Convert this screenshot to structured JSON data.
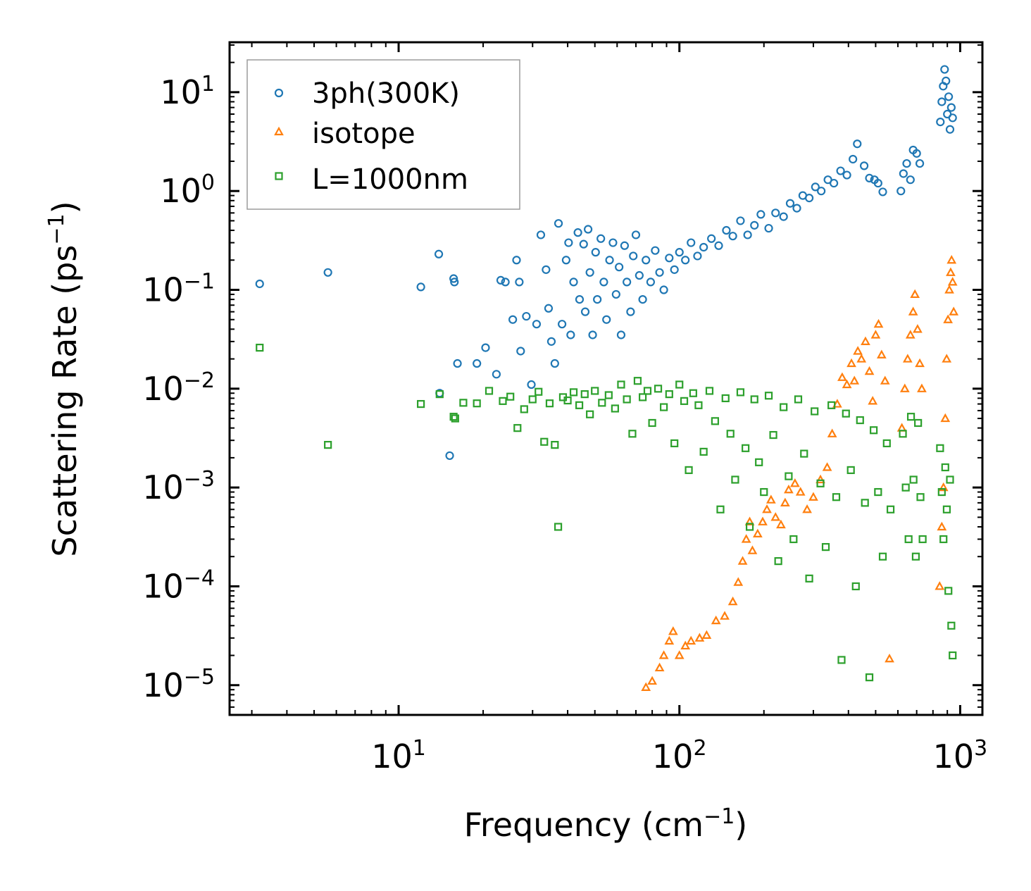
{
  "chart_data": {
    "type": "scatter",
    "title": "",
    "xlabel": "Frequency (cm",
    "xlabel_sup": "−1",
    "xlabel_tail": ")",
    "ylabel": "Scattering Rate (ps",
    "ylabel_sup": "−1",
    "ylabel_tail": ")",
    "xscale": "log",
    "yscale": "log",
    "xlim": [
      2.5,
      1200
    ],
    "ylim": [
      5e-06,
      32
    ],
    "x_major_ticks": [
      {
        "value": 10,
        "base": "10",
        "exp": "1"
      },
      {
        "value": 100,
        "base": "10",
        "exp": "2"
      },
      {
        "value": 1000,
        "base": "10",
        "exp": "3"
      }
    ],
    "y_major_ticks": [
      {
        "value": 10,
        "base": "10",
        "exp": "1"
      },
      {
        "value": 1,
        "base": "10",
        "exp": "0"
      },
      {
        "value": 0.1,
        "base": "10",
        "exp": "−1"
      },
      {
        "value": 0.01,
        "base": "10",
        "exp": "−2"
      },
      {
        "value": 0.001,
        "base": "10",
        "exp": "−3"
      },
      {
        "value": 0.0001,
        "base": "10",
        "exp": "−4"
      },
      {
        "value": 1e-05,
        "base": "10",
        "exp": "−5"
      }
    ],
    "legend_location": "upper-left",
    "series": [
      {
        "name": "3ph(300K)",
        "marker": "circle",
        "color": "#1f77b4",
        "points": [
          [
            3.2,
            0.115
          ],
          [
            5.6,
            0.15
          ],
          [
            12,
            0.107
          ],
          [
            13.9,
            0.23
          ],
          [
            15.7,
            0.13
          ],
          [
            15.8,
            0.12
          ],
          [
            14,
            0.009
          ],
          [
            15.2,
            0.0021
          ],
          [
            16.2,
            0.018
          ],
          [
            19,
            0.018
          ],
          [
            20.4,
            0.026
          ],
          [
            23.1,
            0.125
          ],
          [
            22.3,
            0.014
          ],
          [
            24,
            0.12
          ],
          [
            25.5,
            0.05
          ],
          [
            26.3,
            0.2
          ],
          [
            26.9,
            0.12
          ],
          [
            27.2,
            0.024
          ],
          [
            28.5,
            0.054
          ],
          [
            29.7,
            0.011
          ],
          [
            31,
            0.045
          ],
          [
            32.1,
            0.36
          ],
          [
            33.5,
            0.16
          ],
          [
            34.2,
            0.065
          ],
          [
            35,
            0.03
          ],
          [
            36,
            0.018
          ],
          [
            37.1,
            0.47
          ],
          [
            38.2,
            0.045
          ],
          [
            39.5,
            0.2
          ],
          [
            40.3,
            0.3
          ],
          [
            41,
            0.035
          ],
          [
            42,
            0.12
          ],
          [
            43.5,
            0.38
          ],
          [
            44.1,
            0.08
          ],
          [
            45.6,
            0.29
          ],
          [
            46.2,
            0.06
          ],
          [
            47.3,
            0.41
          ],
          [
            48,
            0.15
          ],
          [
            49.1,
            0.035
          ],
          [
            50.3,
            0.24
          ],
          [
            51,
            0.08
          ],
          [
            52.5,
            0.33
          ],
          [
            53.8,
            0.12
          ],
          [
            55,
            0.05
          ],
          [
            56.4,
            0.2
          ],
          [
            58,
            0.3
          ],
          [
            59.5,
            0.09
          ],
          [
            61,
            0.17
          ],
          [
            62,
            0.035
          ],
          [
            63.8,
            0.28
          ],
          [
            65,
            0.12
          ],
          [
            67,
            0.06
          ],
          [
            68.5,
            0.22
          ],
          [
            70,
            0.36
          ],
          [
            72,
            0.14
          ],
          [
            74,
            0.08
          ],
          [
            76,
            0.2
          ],
          [
            79,
            0.12
          ],
          [
            82,
            0.25
          ],
          [
            85,
            0.15
          ],
          [
            88,
            0.1
          ],
          [
            92,
            0.21
          ],
          [
            96,
            0.16
          ],
          [
            100,
            0.24
          ],
          [
            105,
            0.2
          ],
          [
            110,
            0.3
          ],
          [
            116,
            0.22
          ],
          [
            122,
            0.27
          ],
          [
            130,
            0.33
          ],
          [
            138,
            0.28
          ],
          [
            147,
            0.4
          ],
          [
            155,
            0.35
          ],
          [
            165,
            0.5
          ],
          [
            175,
            0.36
          ],
          [
            185,
            0.45
          ],
          [
            195,
            0.58
          ],
          [
            208,
            0.42
          ],
          [
            220,
            0.6
          ],
          [
            235,
            0.55
          ],
          [
            248,
            0.75
          ],
          [
            262,
            0.67
          ],
          [
            275,
            0.9
          ],
          [
            290,
            0.85
          ],
          [
            305,
            1.1
          ],
          [
            320,
            1.0
          ],
          [
            338,
            1.3
          ],
          [
            355,
            1.2
          ],
          [
            375,
            1.6
          ],
          [
            395,
            1.45
          ],
          [
            415,
            2.1
          ],
          [
            430,
            3.0
          ],
          [
            455,
            1.8
          ],
          [
            475,
            1.35
          ],
          [
            495,
            1.3
          ],
          [
            510,
            1.2
          ],
          [
            530,
            0.98
          ],
          [
            615,
            1.0
          ],
          [
            628,
            1.5
          ],
          [
            645,
            1.9
          ],
          [
            665,
            1.3
          ],
          [
            680,
            2.6
          ],
          [
            700,
            2.4
          ],
          [
            718,
            1.9
          ],
          [
            850,
            5.0
          ],
          [
            860,
            8.0
          ],
          [
            870,
            11.5
          ],
          [
            880,
            17.0
          ],
          [
            890,
            13.0
          ],
          [
            900,
            6.0
          ],
          [
            910,
            9.0
          ],
          [
            920,
            4.2
          ],
          [
            930,
            7.0
          ],
          [
            940,
            5.5
          ]
        ]
      },
      {
        "name": "isotope",
        "marker": "triangle",
        "color": "#ff7f0e",
        "points": [
          [
            76,
            9.5e-06
          ],
          [
            80,
            1.1e-05
          ],
          [
            85,
            1.5e-05
          ],
          [
            88,
            2e-05
          ],
          [
            92,
            2.8e-05
          ],
          [
            95,
            3.5e-05
          ],
          [
            100,
            2e-05
          ],
          [
            105,
            2.5e-05
          ],
          [
            110,
            2.8e-05
          ],
          [
            118,
            3e-05
          ],
          [
            125,
            3.2e-05
          ],
          [
            135,
            4.5e-05
          ],
          [
            145,
            5e-05
          ],
          [
            155,
            7e-05
          ],
          [
            162,
            0.00011
          ],
          [
            168,
            0.00018
          ],
          [
            173,
            0.0003
          ],
          [
            178,
            0.00045
          ],
          [
            182,
            0.00023
          ],
          [
            190,
            0.00034
          ],
          [
            198,
            0.00045
          ],
          [
            205,
            0.0006
          ],
          [
            212,
            0.00075
          ],
          [
            220,
            0.0005
          ],
          [
            230,
            0.00042
          ],
          [
            238,
            0.0007
          ],
          [
            245,
            0.00095
          ],
          [
            258,
            0.0011
          ],
          [
            270,
            0.0009
          ],
          [
            285,
            0.0006
          ],
          [
            300,
            0.0008
          ],
          [
            318,
            0.0012
          ],
          [
            336,
            0.0016
          ],
          [
            350,
            0.0035
          ],
          [
            365,
            0.007
          ],
          [
            380,
            0.013
          ],
          [
            395,
            0.011
          ],
          [
            410,
            0.018
          ],
          [
            420,
            0.012
          ],
          [
            432,
            0.024
          ],
          [
            445,
            0.02
          ],
          [
            460,
            0.03
          ],
          [
            475,
            0.015
          ],
          [
            488,
            0.0075
          ],
          [
            500,
            0.035
          ],
          [
            512,
            0.045
          ],
          [
            525,
            0.022
          ],
          [
            540,
            0.012
          ],
          [
            560,
            1.85e-05
          ],
          [
            620,
            0.004
          ],
          [
            635,
            0.01
          ],
          [
            650,
            0.02
          ],
          [
            665,
            0.035
          ],
          [
            680,
            0.06
          ],
          [
            690,
            0.09
          ],
          [
            705,
            0.04
          ],
          [
            718,
            0.018
          ],
          [
            730,
            0.01
          ],
          [
            845,
            0.0001
          ],
          [
            860,
            0.0004
          ],
          [
            872,
            0.001
          ],
          [
            885,
            0.005
          ],
          [
            895,
            0.02
          ],
          [
            905,
            0.05
          ],
          [
            915,
            0.1
          ],
          [
            925,
            0.15
          ],
          [
            932,
            0.2
          ],
          [
            940,
            0.12
          ],
          [
            948,
            0.06
          ]
        ]
      },
      {
        "name": "L=1000nm",
        "marker": "square",
        "color": "#2ca02c",
        "points": [
          [
            3.2,
            0.026
          ],
          [
            5.6,
            0.0027
          ],
          [
            12,
            0.007
          ],
          [
            14,
            0.0088
          ],
          [
            15.7,
            0.0052
          ],
          [
            15.9,
            0.005
          ],
          [
            17,
            0.0072
          ],
          [
            19,
            0.0071
          ],
          [
            21,
            0.0095
          ],
          [
            23.5,
            0.0075
          ],
          [
            25,
            0.0083
          ],
          [
            26.5,
            0.004
          ],
          [
            28,
            0.0062
          ],
          [
            30,
            0.0078
          ],
          [
            31.5,
            0.0093
          ],
          [
            33,
            0.0029
          ],
          [
            34.5,
            0.0071
          ],
          [
            36,
            0.0027
          ],
          [
            37,
            0.0004
          ],
          [
            38.5,
            0.0082
          ],
          [
            40,
            0.0076
          ],
          [
            42,
            0.0092
          ],
          [
            44,
            0.0068
          ],
          [
            46,
            0.0088
          ],
          [
            48,
            0.0055
          ],
          [
            50,
            0.0095
          ],
          [
            53,
            0.0072
          ],
          [
            56,
            0.0086
          ],
          [
            59,
            0.0063
          ],
          [
            62,
            0.011
          ],
          [
            65,
            0.0078
          ],
          [
            68,
            0.0035
          ],
          [
            71,
            0.012
          ],
          [
            74,
            0.0082
          ],
          [
            77,
            0.0095
          ],
          [
            80,
            0.0045
          ],
          [
            84,
            0.01
          ],
          [
            88,
            0.0065
          ],
          [
            92,
            0.0088
          ],
          [
            96,
            0.0028
          ],
          [
            100,
            0.011
          ],
          [
            104,
            0.0075
          ],
          [
            108,
            0.0015
          ],
          [
            112,
            0.009
          ],
          [
            117,
            0.0068
          ],
          [
            122,
            0.0023
          ],
          [
            128,
            0.0095
          ],
          [
            134,
            0.0047
          ],
          [
            140,
            0.0006
          ],
          [
            146,
            0.008
          ],
          [
            152,
            0.0035
          ],
          [
            158,
            0.0012
          ],
          [
            165,
            0.0092
          ],
          [
            172,
            0.0025
          ],
          [
            178,
            0.0004
          ],
          [
            185,
            0.0078
          ],
          [
            192,
            0.0018
          ],
          [
            200,
            0.0009
          ],
          [
            208,
            0.0085
          ],
          [
            216,
            0.0034
          ],
          [
            225,
            0.00018
          ],
          [
            235,
            0.0065
          ],
          [
            245,
            0.0013
          ],
          [
            255,
            0.0003
          ],
          [
            265,
            0.0078
          ],
          [
            278,
            0.0022
          ],
          [
            290,
            0.00012
          ],
          [
            303,
            0.0059
          ],
          [
            318,
            0.0011
          ],
          [
            332,
            0.00025
          ],
          [
            348,
            0.0068
          ],
          [
            362,
            0.0008
          ],
          [
            378,
            1.8e-05
          ],
          [
            392,
            0.0056
          ],
          [
            408,
            0.0015
          ],
          [
            425,
            0.0001
          ],
          [
            440,
            0.0048
          ],
          [
            458,
            0.0007
          ],
          [
            475,
            1.2e-05
          ],
          [
            492,
            0.0038
          ],
          [
            510,
            0.0009
          ],
          [
            530,
            0.0002
          ],
          [
            548,
            0.0028
          ],
          [
            565,
            0.0006
          ],
          [
            625,
            0.0035
          ],
          [
            640,
            0.001
          ],
          [
            655,
            0.0003
          ],
          [
            668,
            0.0052
          ],
          [
            682,
            0.0012
          ],
          [
            695,
            0.0002
          ],
          [
            708,
            0.0045
          ],
          [
            722,
            0.0008
          ],
          [
            735,
            0.0003
          ],
          [
            848,
            0.0025
          ],
          [
            860,
            0.0009
          ],
          [
            872,
            0.0003
          ],
          [
            885,
            0.0016
          ],
          [
            896,
            0.0006
          ],
          [
            908,
            9e-05
          ],
          [
            920,
            0.0012
          ],
          [
            930,
            4e-05
          ],
          [
            940,
            2e-05
          ]
        ]
      }
    ]
  }
}
